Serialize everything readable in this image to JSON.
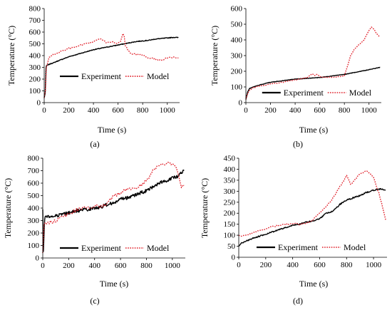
{
  "figure": {
    "background": "#ffffff",
    "experiment_color": "#000000",
    "model_color": "#e0202a"
  },
  "chart_data": [
    {
      "id": "a",
      "type": "line",
      "caption": "(a)",
      "xlabel": "Time (s)",
      "ylabel": "Temperature (°C)",
      "xlim": [
        0,
        1100
      ],
      "ylim": [
        0,
        800
      ],
      "xticks": [
        0,
        200,
        400,
        600,
        800,
        1000
      ],
      "yticks": [
        0,
        100,
        200,
        300,
        400,
        500,
        600,
        700,
        800
      ],
      "legend_position": "center-left",
      "series": [
        {
          "name": "Experiment",
          "style": "solid",
          "x": [
            0,
            8,
            15,
            20,
            30,
            50,
            80,
            100,
            150,
            200,
            250,
            300,
            350,
            400,
            450,
            500,
            550,
            600,
            650,
            700,
            750,
            800,
            850,
            900,
            950,
            1000,
            1050,
            1090
          ],
          "y": [
            40,
            80,
            300,
            315,
            320,
            330,
            340,
            350,
            370,
            390,
            405,
            420,
            435,
            450,
            460,
            470,
            480,
            490,
            500,
            510,
            520,
            525,
            530,
            540,
            545,
            550,
            555,
            553
          ]
        },
        {
          "name": "Model",
          "style": "dotted",
          "x": [
            0,
            10,
            18,
            25,
            40,
            60,
            100,
            150,
            200,
            250,
            300,
            350,
            400,
            450,
            480,
            500,
            550,
            580,
            600,
            620,
            640,
            650,
            660,
            680,
            700,
            750,
            800,
            850,
            900,
            950,
            1000,
            1050,
            1090
          ],
          "y": [
            40,
            100,
            300,
            330,
            380,
            400,
            420,
            440,
            460,
            470,
            490,
            500,
            520,
            540,
            530,
            510,
            520,
            510,
            500,
            520,
            590,
            560,
            480,
            450,
            420,
            410,
            400,
            380,
            370,
            360,
            380,
            385,
            380
          ]
        }
      ]
    },
    {
      "id": "b",
      "type": "line",
      "caption": "(b)",
      "xlabel": "Time (s)",
      "ylabel": "Temperature (°C)",
      "xlim": [
        0,
        1100
      ],
      "ylim": [
        0,
        600
      ],
      "xticks": [
        0,
        200,
        400,
        600,
        800,
        1000
      ],
      "yticks": [
        0,
        100,
        200,
        300,
        400,
        500,
        600
      ],
      "legend_position": "bottom-center",
      "series": [
        {
          "name": "Experiment",
          "style": "solid",
          "x": [
            0,
            15,
            30,
            60,
            100,
            150,
            200,
            300,
            400,
            500,
            600,
            700,
            800,
            900,
            1000,
            1090
          ],
          "y": [
            20,
            70,
            90,
            100,
            110,
            120,
            130,
            140,
            150,
            155,
            160,
            170,
            180,
            195,
            210,
            225
          ]
        },
        {
          "name": "Model",
          "style": "dotted",
          "x": [
            0,
            15,
            30,
            60,
            100,
            150,
            200,
            300,
            400,
            500,
            540,
            560,
            580,
            600,
            700,
            800,
            820,
            850,
            880,
            920,
            960,
            1000,
            1020,
            1040,
            1060,
            1090
          ],
          "y": [
            20,
            60,
            80,
            95,
            105,
            110,
            120,
            130,
            145,
            160,
            185,
            175,
            180,
            165,
            160,
            170,
            220,
            300,
            340,
            370,
            400,
            460,
            480,
            470,
            440,
            420
          ]
        }
      ]
    },
    {
      "id": "c",
      "type": "line",
      "caption": "(c)",
      "xlabel": "Time (s)",
      "ylabel": "Temperature (°C)",
      "xlim": [
        0,
        1100
      ],
      "ylim": [
        0,
        800
      ],
      "xticks": [
        0,
        200,
        400,
        600,
        800,
        1000
      ],
      "yticks": [
        0,
        100,
        200,
        300,
        400,
        500,
        600,
        700,
        800
      ],
      "legend_position": "bottom-center",
      "series": [
        {
          "name": "Experiment",
          "style": "solid",
          "x": [
            0,
            5,
            15,
            30,
            60,
            100,
            150,
            200,
            250,
            300,
            350,
            400,
            450,
            500,
            550,
            600,
            650,
            700,
            750,
            800,
            850,
            900,
            950,
            1000,
            1050,
            1090
          ],
          "y": [
            390,
            40,
            320,
            330,
            330,
            340,
            350,
            360,
            375,
            385,
            390,
            400,
            410,
            430,
            440,
            470,
            480,
            500,
            520,
            540,
            570,
            600,
            620,
            640,
            660,
            700
          ]
        },
        {
          "name": "Model",
          "style": "dotted",
          "x": [
            0,
            10,
            20,
            40,
            80,
            100,
            150,
            200,
            250,
            300,
            350,
            400,
            450,
            500,
            550,
            600,
            650,
            700,
            750,
            800,
            850,
            900,
            950,
            1000,
            1040,
            1070,
            1090
          ],
          "y": [
            40,
            260,
            270,
            280,
            290,
            300,
            330,
            350,
            380,
            400,
            400,
            420,
            410,
            440,
            500,
            520,
            560,
            550,
            580,
            620,
            700,
            740,
            760,
            760,
            700,
            560,
            580
          ]
        }
      ]
    },
    {
      "id": "d",
      "type": "line",
      "caption": "(d)",
      "xlabel": "Time (s)",
      "ylabel": "Temperature (°C)",
      "xlim": [
        0,
        1100
      ],
      "ylim": [
        0,
        450
      ],
      "xticks": [
        0,
        200,
        400,
        600,
        800,
        1000
      ],
      "yticks": [
        0,
        50,
        100,
        150,
        200,
        250,
        300,
        350,
        400,
        450
      ],
      "legend_position": "bottom-center",
      "series": [
        {
          "name": "Experiment",
          "style": "solid",
          "x": [
            0,
            20,
            60,
            100,
            150,
            200,
            250,
            300,
            350,
            400,
            450,
            500,
            550,
            600,
            650,
            700,
            750,
            800,
            850,
            900,
            950,
            1000,
            1050,
            1090
          ],
          "y": [
            50,
            65,
            75,
            85,
            95,
            105,
            115,
            125,
            135,
            145,
            150,
            160,
            165,
            175,
            200,
            210,
            240,
            260,
            270,
            280,
            295,
            305,
            310,
            305
          ]
        },
        {
          "name": "Model",
          "style": "dotted",
          "x": [
            0,
            20,
            60,
            100,
            150,
            200,
            250,
            300,
            350,
            400,
            450,
            500,
            550,
            600,
            650,
            700,
            750,
            800,
            830,
            860,
            900,
            950,
            1000,
            1040,
            1070,
            1090
          ],
          "y": [
            100,
            95,
            100,
            110,
            120,
            130,
            140,
            145,
            150,
            155,
            150,
            155,
            170,
            200,
            230,
            270,
            320,
            370,
            330,
            350,
            380,
            395,
            360,
            290,
            220,
            170
          ]
        }
      ]
    }
  ]
}
